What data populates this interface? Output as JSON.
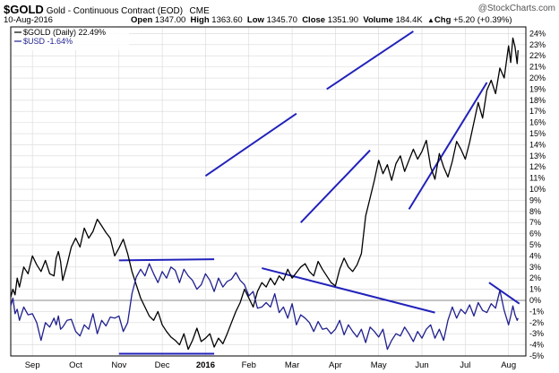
{
  "header": {
    "symbol": "$GOLD",
    "description": "Gold - Continuous Contract (EOD)",
    "exchange": "CME",
    "date": "10-Aug-2016",
    "open_label": "Open",
    "open": "1347.00",
    "high_label": "High",
    "high": "1363.60",
    "low_label": "Low",
    "low": "1345.70",
    "close_label": "Close",
    "close": "1351.90",
    "volume_label": "Volume",
    "volume": "184.4K",
    "chg_label": "Chg",
    "chg": "+5.20 (+0.39%)",
    "chg_arrow": "▲",
    "watermark": "@StockCharts.com"
  },
  "colors": {
    "gold": "#000000",
    "usd": "#1f1f8f",
    "trend": "#2222bb",
    "zero_line": "#888888",
    "grid": "#d8d8d8"
  },
  "chart_data": {
    "type": "line",
    "x_labels": [
      "Sep",
      "Oct",
      "Nov",
      "Dec",
      "2016",
      "Feb",
      "Mar",
      "Apr",
      "May",
      "Jun",
      "Jul",
      "Aug"
    ],
    "y_ticks": [
      "24%",
      "23%",
      "22%",
      "21%",
      "20%",
      "19%",
      "18%",
      "17%",
      "16%",
      "15%",
      "14%",
      "13%",
      "12%",
      "11%",
      "10%",
      "9%",
      "8%",
      "7%",
      "6%",
      "5%",
      "4%",
      "3%",
      "2%",
      "1%",
      "0%",
      "-1%",
      "-2%",
      "-3%",
      "-4%",
      "-5%"
    ],
    "ylim": [
      -5,
      24.6
    ],
    "x_range": [
      0,
      11.9
    ],
    "series": [
      {
        "name": "$GOLD (Daily) 22.49%",
        "x": [
          0.0,
          0.05,
          0.1,
          0.15,
          0.2,
          0.3,
          0.4,
          0.5,
          0.6,
          0.7,
          0.8,
          0.9,
          1.0,
          1.05,
          1.1,
          1.15,
          1.2,
          1.3,
          1.4,
          1.5,
          1.6,
          1.7,
          1.8,
          1.9,
          2.0,
          2.1,
          2.2,
          2.3,
          2.4,
          2.5,
          2.6,
          2.7,
          2.8,
          2.9,
          3.0,
          3.1,
          3.2,
          3.3,
          3.4,
          3.5,
          3.6,
          3.7,
          3.8,
          3.9,
          4.0,
          4.1,
          4.2,
          4.3,
          4.4,
          4.5,
          4.6,
          4.7,
          4.8,
          4.9,
          5.0,
          5.1,
          5.2,
          5.3,
          5.4,
          5.5,
          5.6,
          5.7,
          5.8,
          5.9,
          6.0,
          6.1,
          6.2,
          6.3,
          6.4,
          6.5,
          6.6,
          6.7,
          6.8,
          6.9,
          7.0,
          7.1,
          7.2,
          7.3,
          7.4,
          7.5,
          7.6,
          7.7,
          7.8,
          7.9,
          8.0,
          8.1,
          8.2,
          8.3,
          8.4,
          8.5,
          8.6,
          8.7,
          8.8,
          8.9,
          9.0,
          9.1,
          9.2,
          9.3,
          9.4,
          9.5,
          9.6,
          9.7,
          9.8,
          9.9,
          10.0,
          10.1,
          10.2,
          10.3,
          10.4,
          10.5,
          10.6,
          10.7,
          10.8,
          10.9,
          11.0,
          11.1,
          11.2,
          11.3,
          11.4,
          11.5,
          11.55,
          11.6,
          11.65,
          11.7,
          11.72
        ],
        "values": [
          0.3,
          1.0,
          0.5,
          2.0,
          1.2,
          3.0,
          2.4,
          4.0,
          3.2,
          2.6,
          3.6,
          2.4,
          2.2,
          3.8,
          4.4,
          3.5,
          1.8,
          3.2,
          4.8,
          5.6,
          4.8,
          6.5,
          5.6,
          6.2,
          7.3,
          6.7,
          6.1,
          5.6,
          4.0,
          4.7,
          5.5,
          4.2,
          2.6,
          1.4,
          0.2,
          -0.6,
          -1.4,
          -1.8,
          -1.0,
          -2.2,
          -2.8,
          -3.3,
          -3.6,
          -4.0,
          -3.0,
          -4.4,
          -3.6,
          -2.5,
          -3.7,
          -3.4,
          -3.0,
          -4.2,
          -3.4,
          -3.9,
          -3.0,
          -2.0,
          -1.0,
          -0.2,
          1.0,
          0.2,
          -0.6,
          0.8,
          1.6,
          1.2,
          2.0,
          1.4,
          2.2,
          1.8,
          2.8,
          2.0,
          2.5,
          3.0,
          3.3,
          2.6,
          2.2,
          3.5,
          2.8,
          2.2,
          1.6,
          1.3,
          2.8,
          3.8,
          3.0,
          2.6,
          3.2,
          4.2,
          7.6,
          9.2,
          10.8,
          12.6,
          11.4,
          12.2,
          10.8,
          12.3,
          13.0,
          11.6,
          12.6,
          13.6,
          12.7,
          13.4,
          14.4,
          12.0,
          10.9,
          13.2,
          12.0,
          11.1,
          12.5,
          14.3,
          13.6,
          12.7,
          14.2,
          16.0,
          17.8,
          16.4,
          18.9,
          19.8,
          18.6,
          20.9,
          20.0,
          22.9,
          21.4,
          23.6,
          22.8,
          21.3,
          22.5
        ],
        "color": "#000000"
      },
      {
        "name": "$USD -1.64%",
        "x": [
          0.0,
          0.05,
          0.1,
          0.15,
          0.2,
          0.3,
          0.4,
          0.5,
          0.6,
          0.7,
          0.8,
          0.9,
          1.0,
          1.05,
          1.1,
          1.15,
          1.2,
          1.3,
          1.4,
          1.5,
          1.6,
          1.7,
          1.8,
          1.9,
          2.0,
          2.1,
          2.2,
          2.3,
          2.4,
          2.5,
          2.6,
          2.7,
          2.8,
          2.9,
          3.0,
          3.1,
          3.2,
          3.3,
          3.4,
          3.5,
          3.6,
          3.7,
          3.8,
          3.9,
          4.0,
          4.1,
          4.2,
          4.3,
          4.4,
          4.5,
          4.6,
          4.7,
          4.8,
          4.9,
          5.0,
          5.1,
          5.2,
          5.3,
          5.4,
          5.5,
          5.6,
          5.7,
          5.8,
          5.9,
          6.0,
          6.1,
          6.2,
          6.3,
          6.4,
          6.5,
          6.6,
          6.7,
          6.8,
          6.9,
          7.0,
          7.1,
          7.2,
          7.3,
          7.4,
          7.5,
          7.6,
          7.7,
          7.8,
          7.9,
          8.0,
          8.1,
          8.2,
          8.3,
          8.4,
          8.5,
          8.6,
          8.7,
          8.8,
          8.9,
          9.0,
          9.1,
          9.2,
          9.3,
          9.4,
          9.5,
          9.6,
          9.7,
          9.8,
          9.9,
          10.0,
          10.1,
          10.2,
          10.3,
          10.4,
          10.5,
          10.6,
          10.7,
          10.8,
          10.9,
          11.0,
          11.1,
          11.2,
          11.3,
          11.4,
          11.5,
          11.55,
          11.6,
          11.65,
          11.7,
          11.72
        ],
        "values": [
          -0.5,
          0.2,
          -1.2,
          -0.8,
          -1.8,
          -0.6,
          -1.3,
          -1.2,
          -2.0,
          -3.6,
          -2.0,
          -2.4,
          -1.6,
          -2.2,
          -1.4,
          -2.6,
          -2.4,
          -1.8,
          -1.7,
          -2.8,
          -3.2,
          -2.2,
          -2.6,
          -1.2,
          -3.0,
          -1.8,
          -2.3,
          -1.5,
          -1.6,
          -1.4,
          -2.8,
          -2.0,
          0.6,
          2.1,
          2.8,
          2.2,
          3.3,
          2.4,
          1.6,
          2.6,
          2.0,
          3.0,
          2.7,
          1.6,
          2.8,
          2.2,
          1.8,
          1.0,
          1.4,
          2.4,
          1.8,
          0.8,
          2.0,
          1.2,
          1.7,
          1.9,
          2.5,
          1.8,
          1.4,
          0.4,
          0.8,
          -0.7,
          -0.6,
          -0.2,
          -0.6,
          0.6,
          -1.1,
          -0.6,
          -1.6,
          -0.3,
          -2.2,
          -1.3,
          -1.6,
          -2.0,
          -2.8,
          -1.9,
          -2.6,
          -2.5,
          -3.0,
          -2.6,
          -1.8,
          -3.1,
          -2.2,
          -2.8,
          -3.3,
          -2.6,
          -3.8,
          -2.4,
          -2.8,
          -3.3,
          -2.6,
          -4.4,
          -3.6,
          -3.0,
          -3.2,
          -2.4,
          -3.0,
          -3.7,
          -2.8,
          -3.4,
          -2.6,
          -2.2,
          -3.4,
          -2.6,
          -3.6,
          -1.8,
          -0.6,
          -1.6,
          -0.8,
          -1.2,
          -0.4,
          -1.4,
          -0.2,
          -0.9,
          -1.1,
          -0.3,
          -0.7,
          0.9,
          -0.9,
          -2.2,
          -1.4,
          -0.5,
          -1.3,
          -1.8,
          -1.6
        ],
        "color": "#1f1f8f"
      }
    ],
    "legend": "top-left",
    "grid": true
  }
}
